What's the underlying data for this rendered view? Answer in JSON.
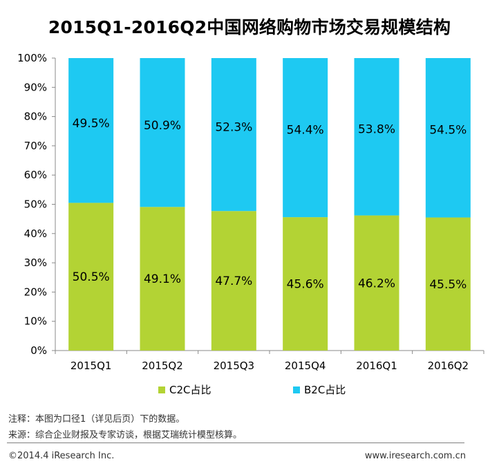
{
  "chart_data": {
    "type": "bar",
    "stacked": true,
    "title": "2015Q1-2016Q2中国网络购物市场交易规模结构",
    "categories": [
      "2015Q1",
      "2015Q2",
      "2015Q3",
      "2015Q4",
      "2016Q1",
      "2016Q2"
    ],
    "series": [
      {
        "name": "C2C占比",
        "color": "#b3d334",
        "values": [
          50.5,
          49.1,
          47.7,
          45.6,
          46.2,
          45.5
        ]
      },
      {
        "name": "B2C占比",
        "color": "#1ec9f2",
        "values": [
          49.5,
          50.9,
          52.3,
          54.4,
          53.8,
          54.5
        ]
      }
    ],
    "ylim": [
      0,
      100
    ],
    "yticks": [
      "0%",
      "10%",
      "20%",
      "30%",
      "40%",
      "50%",
      "60%",
      "70%",
      "80%",
      "90%",
      "100%"
    ],
    "value_suffix": "%",
    "legend_position": "bottom",
    "grid": false
  },
  "notes": {
    "note1": "注释：本图为口径1（详见后页）下的数据。",
    "note2": "来源：综合企业财报及专家访谈，根据艾瑞统计模型核算。"
  },
  "footer": {
    "copyright": "©2014.4 iResearch Inc.",
    "website": "www.iresearch.com.cn"
  }
}
